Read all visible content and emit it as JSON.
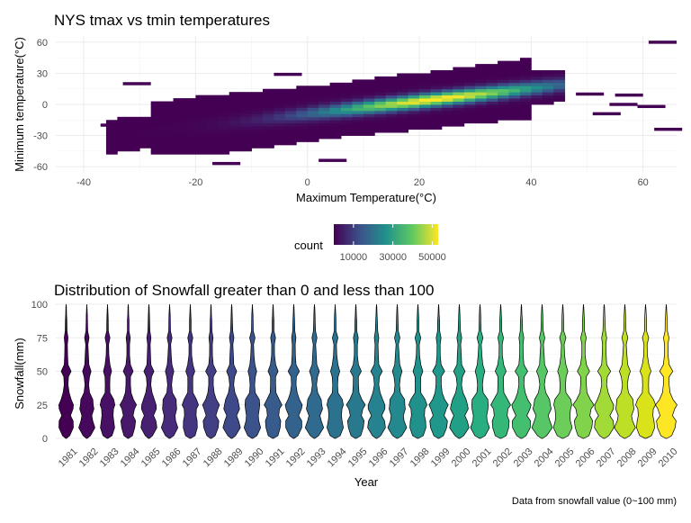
{
  "chart_data": [
    {
      "type": "heatmap",
      "title": "NYS tmax vs tmin temperatures",
      "xlabel": "Maximum Temperature(°C)",
      "ylabel": "Minimum temperature(°C)",
      "xlim": [
        -45,
        66
      ],
      "ylim": [
        -66,
        66
      ],
      "x_ticks": [
        "-40",
        "-20",
        "0",
        "20",
        "40",
        "60"
      ],
      "y_ticks": [
        "60",
        "30",
        "0",
        "-30",
        "-60"
      ],
      "grid": true,
      "legend": {
        "title": "count",
        "position": "bottom",
        "breaks": [
          "10000",
          "30000",
          "50000"
        ],
        "range": [
          0,
          53000
        ],
        "colors": [
          "#440154",
          "#3b528b",
          "#21918c",
          "#5ec962",
          "#fde725"
        ]
      },
      "density": {
        "ridge_slope": 0.62,
        "ridge_intercept": -10,
        "peak": {
          "tmax": 26,
          "tmin": 16,
          "count": 53000
        }
      },
      "outliers": [
        {
          "tmax": 61,
          "tmin": 60
        },
        {
          "tmax": -33,
          "tmin": 20
        },
        {
          "tmax": -37,
          "tmin": -20
        },
        {
          "tmax": -17,
          "tmin": -57
        },
        {
          "tmax": 2,
          "tmin": -54
        },
        {
          "tmax": 55,
          "tmin": 9
        },
        {
          "tmax": 59,
          "tmin": -2
        },
        {
          "tmax": 54,
          "tmin": 0
        },
        {
          "tmax": 62,
          "tmin": -24
        },
        {
          "tmax": 48,
          "tmin": 10
        },
        {
          "tmax": 51,
          "tmin": -9
        },
        {
          "tmax": -6,
          "tmin": 29
        }
      ]
    },
    {
      "type": "violin",
      "title": "Distribution of Snowfall greater than 0 and less than 100",
      "xlabel": "Year",
      "ylabel": "Snowfall(mm)",
      "ylim": [
        0,
        100
      ],
      "y_ticks": [
        "100",
        "75",
        "50",
        "25",
        "0"
      ],
      "grid": true,
      "categories": [
        "1981",
        "1982",
        "1983",
        "1984",
        "1985",
        "1986",
        "1987",
        "1988",
        "1989",
        "1990",
        "1991",
        "1992",
        "1993",
        "1994",
        "1995",
        "1996",
        "1997",
        "1998",
        "1999",
        "2000",
        "2001",
        "2002",
        "2003",
        "2004",
        "2005",
        "2006",
        "2007",
        "2008",
        "2009",
        "2010"
      ],
      "colors": [
        "#440154",
        "#46085c",
        "#471064",
        "#48186a",
        "#482071",
        "#472a7a",
        "#453581",
        "#423f85",
        "#3e4989",
        "#3b528b",
        "#375b8d",
        "#33638d",
        "#306a8e",
        "#2c728e",
        "#29798e",
        "#26828e",
        "#23898e",
        "#21918c",
        "#1f988b",
        "#21a085",
        "#28ae80",
        "#35b779",
        "#44bf70",
        "#56c667",
        "#6ccd5a",
        "#82d34c",
        "#a2da37",
        "#bddf26",
        "#dae319",
        "#fde725"
      ],
      "density_profile": [
        {
          "y": 0,
          "w": 0.05
        },
        {
          "y": 2,
          "w": 0.55
        },
        {
          "y": 8,
          "w": 1.0
        },
        {
          "y": 13,
          "w": 0.9
        },
        {
          "y": 17,
          "w": 0.68
        },
        {
          "y": 22,
          "w": 0.9
        },
        {
          "y": 25,
          "w": 1.0
        },
        {
          "y": 29,
          "w": 0.78
        },
        {
          "y": 34,
          "w": 0.38
        },
        {
          "y": 40,
          "w": 0.28
        },
        {
          "y": 46,
          "w": 0.34
        },
        {
          "y": 50,
          "w": 0.62
        },
        {
          "y": 55,
          "w": 0.3
        },
        {
          "y": 62,
          "w": 0.2
        },
        {
          "y": 70,
          "w": 0.16
        },
        {
          "y": 75,
          "w": 0.3
        },
        {
          "y": 80,
          "w": 0.12
        },
        {
          "y": 88,
          "w": 0.1
        },
        {
          "y": 92,
          "w": 0.07
        },
        {
          "y": 98,
          "w": 0.03
        },
        {
          "y": 100,
          "w": 0.0
        }
      ],
      "width_scale_start": 0.72,
      "width_scale_end": 0.98
    }
  ],
  "caption": "Data from snowfall value (0~100 mm)"
}
